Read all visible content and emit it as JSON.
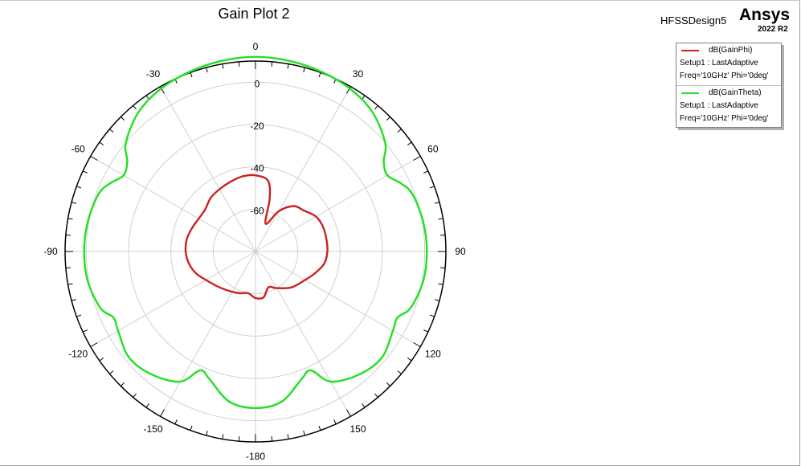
{
  "header": {
    "title": "Gain Plot 2",
    "design": "HFSSDesign5",
    "brand": "Ansys",
    "version": "2022 R2"
  },
  "legend": [
    {
      "name": "dB(GainPhi)",
      "line2": "Setup1 : LastAdaptive",
      "line3": "Freq='10GHz' Phi='0deg'",
      "color": "#cc2020"
    },
    {
      "name": "dB(GainTheta)",
      "line2": "Setup1 : LastAdaptive",
      "line3": "Freq='10GHz' Phi='0deg'",
      "color": "#22e022"
    }
  ],
  "chart_data": {
    "type": "polar",
    "title": "Gain Plot 2",
    "angle_unit": "deg",
    "angle_ticks": [
      0,
      30,
      60,
      90,
      120,
      150,
      -180,
      -150,
      -120,
      -90,
      -60,
      -30
    ],
    "radial_ticks": [
      0,
      -20,
      -40,
      -60
    ],
    "radial_range": [
      -80,
      10
    ],
    "grid": true,
    "legend_position": "top-right",
    "series": [
      {
        "name": "dB(GainPhi)",
        "color": "#cc2020",
        "theta": [
          0,
          10,
          15,
          20,
          30,
          40,
          50,
          60,
          70,
          80,
          90,
          100,
          110,
          120,
          135,
          150,
          160,
          170,
          180,
          -170,
          -160,
          -150,
          -135,
          -120,
          -110,
          -100,
          -90,
          -80,
          -70,
          -60,
          -50,
          -40,
          -30,
          -20,
          -10
        ],
        "r": [
          -44,
          -46,
          -54,
          -66,
          -58,
          -52,
          -50,
          -47,
          -46,
          -46,
          -46,
          -47,
          -50,
          -53,
          -56,
          -60,
          -62,
          -58,
          -58,
          -60,
          -59,
          -58,
          -56,
          -53,
          -50,
          -48,
          -47,
          -47,
          -48,
          -49,
          -49,
          -47,
          -46,
          -45,
          -44
        ]
      },
      {
        "name": "dB(GainTheta)",
        "color": "#22e022",
        "theta": [
          0,
          10,
          20,
          30,
          40,
          50,
          55,
          60,
          65,
          70,
          80,
          90,
          100,
          110,
          115,
          120,
          130,
          140,
          150,
          155,
          160,
          170,
          180,
          -170,
          -160,
          -155,
          -150,
          -140,
          -130,
          -120,
          -115,
          -110,
          -100,
          -90,
          -80,
          -70,
          -65,
          -60,
          -55,
          -50,
          -40,
          -30,
          -20,
          -10
        ],
        "r": [
          12,
          11.5,
          10.5,
          9,
          6,
          0,
          -6,
          -8,
          -4,
          -1,
          0.5,
          1,
          0.5,
          -2,
          -6,
          -5,
          -2,
          -4,
          -9,
          -18,
          -16,
          -8,
          -6,
          -8,
          -16,
          -18,
          -9,
          -4,
          -2,
          -5,
          -6,
          -2,
          0.5,
          1,
          0.5,
          -1,
          -4,
          -8,
          -6,
          0,
          6,
          9,
          10.5,
          11.5
        ]
      }
    ]
  }
}
